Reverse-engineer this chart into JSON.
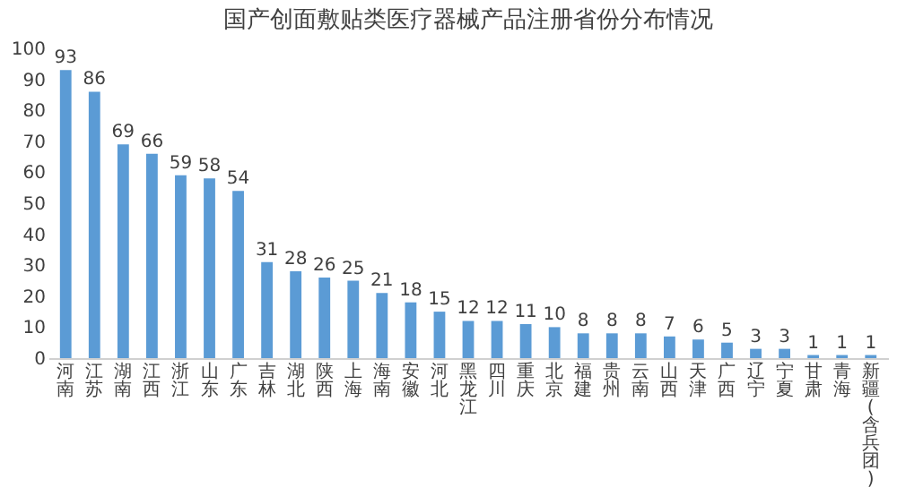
{
  "chart_data": {
    "type": "bar",
    "title": "国产创面敷贴类医疗器械产品注册省份分布情况",
    "categories": [
      "河南",
      "江苏",
      "湖南",
      "江西",
      "浙江",
      "山东",
      "广东",
      "吉林",
      "湖北",
      "陕西",
      "上海",
      "海南",
      "安徽",
      "河北",
      "黑龙江",
      "四川",
      "重庆",
      "北京",
      "福建",
      "贵州",
      "云南",
      "山西",
      "天津",
      "广西",
      "辽宁",
      "宁夏",
      "甘肃",
      "青海",
      "新疆(含兵团)"
    ],
    "values": [
      93,
      86,
      69,
      66,
      59,
      58,
      54,
      31,
      28,
      26,
      25,
      21,
      18,
      15,
      12,
      12,
      11,
      10,
      8,
      8,
      8,
      7,
      6,
      5,
      3,
      3,
      1,
      1,
      1
    ],
    "color": "#5b9bd5",
    "ylim": [
      0,
      100
    ],
    "yticks": [
      0,
      10,
      20,
      30,
      40,
      50,
      60,
      70,
      80,
      90,
      100
    ],
    "grid": false,
    "data_labels": true
  }
}
